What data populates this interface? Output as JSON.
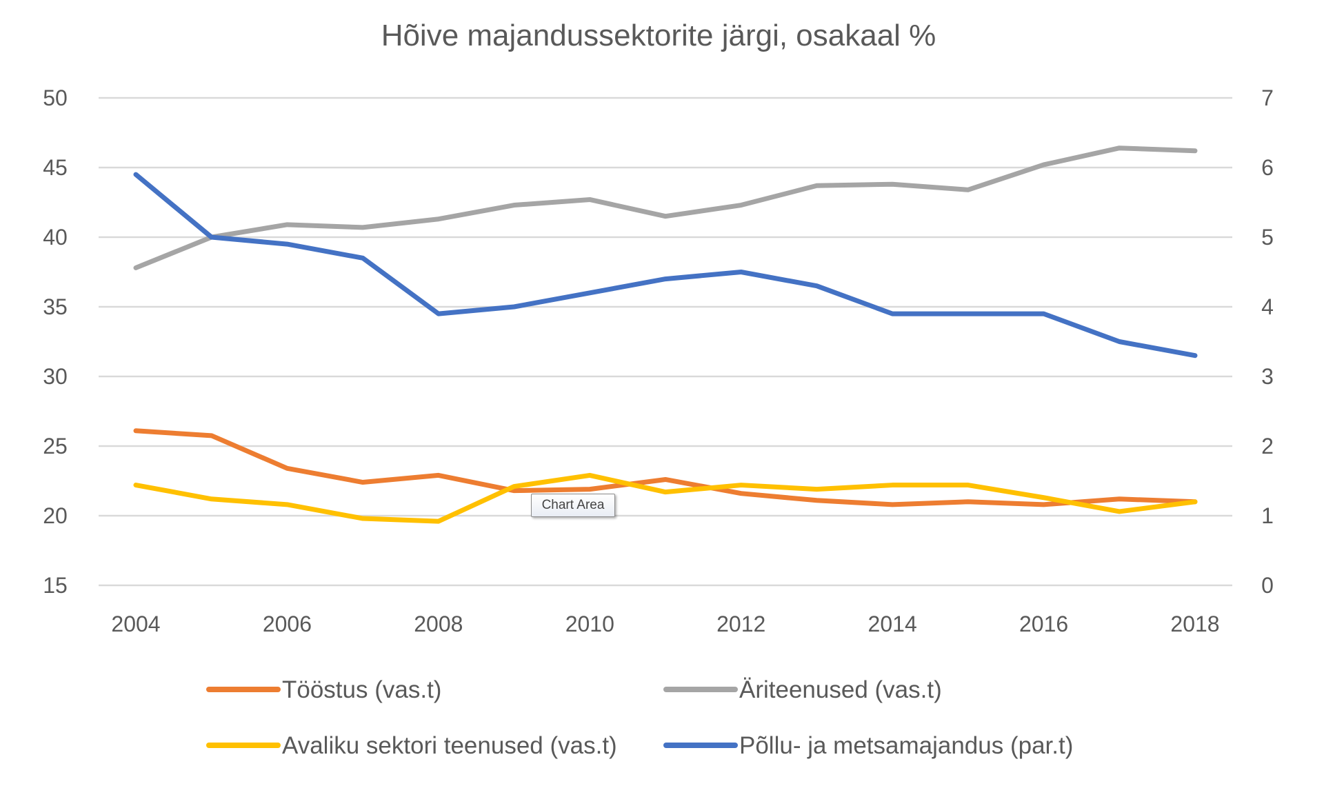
{
  "chart_data": {
    "type": "line",
    "title": "Hõive majandussektorite järgi, osakaal %",
    "x": [
      2004,
      2005,
      2006,
      2007,
      2008,
      2009,
      2010,
      2011,
      2012,
      2013,
      2014,
      2015,
      2016,
      2017,
      2018
    ],
    "x_tick_labels": [
      "2004",
      "2006",
      "2008",
      "2010",
      "2012",
      "2014",
      "2016",
      "2018"
    ],
    "y_left": {
      "range": [
        15,
        50
      ],
      "ticks": [
        "15",
        "20",
        "25",
        "30",
        "35",
        "40",
        "45",
        "50"
      ]
    },
    "y_right": {
      "range": [
        0,
        7
      ],
      "ticks": [
        "0",
        "1",
        "2",
        "3",
        "4",
        "5",
        "6",
        "7"
      ]
    },
    "grid": true,
    "legend_placement": "bottom",
    "series": [
      {
        "name": "Tööstus (vas.t)",
        "axis": "left",
        "color": "#ED7D31",
        "values": [
          26.1,
          25.75,
          23.4,
          22.4,
          22.9,
          21.8,
          21.9,
          22.6,
          21.6,
          21.1,
          20.8,
          21.0,
          20.8,
          21.2,
          21.0
        ]
      },
      {
        "name": "Äriteenused (vas.t)",
        "axis": "left",
        "color": "#A5A5A5",
        "values": [
          37.8,
          40.0,
          40.9,
          40.7,
          41.3,
          42.3,
          42.7,
          41.5,
          42.3,
          43.7,
          43.8,
          43.4,
          45.2,
          46.4,
          46.2
        ]
      },
      {
        "name": "Avaliku sektori teenused (vas.t)",
        "axis": "left",
        "color": "#FFC000",
        "values": [
          22.2,
          21.2,
          20.8,
          19.8,
          19.6,
          22.1,
          22.9,
          21.7,
          22.2,
          21.9,
          22.2,
          22.2,
          21.3,
          20.3,
          21.0
        ]
      },
      {
        "name": "Põllu- ja metsamajandus (par.t)",
        "axis": "right",
        "color": "#4472C4",
        "values": [
          5.9,
          5.0,
          4.9,
          4.7,
          3.9,
          4.0,
          4.2,
          4.4,
          4.5,
          4.3,
          3.9,
          3.9,
          3.9,
          3.5,
          3.3
        ]
      }
    ]
  },
  "tooltip": "Chart Area"
}
